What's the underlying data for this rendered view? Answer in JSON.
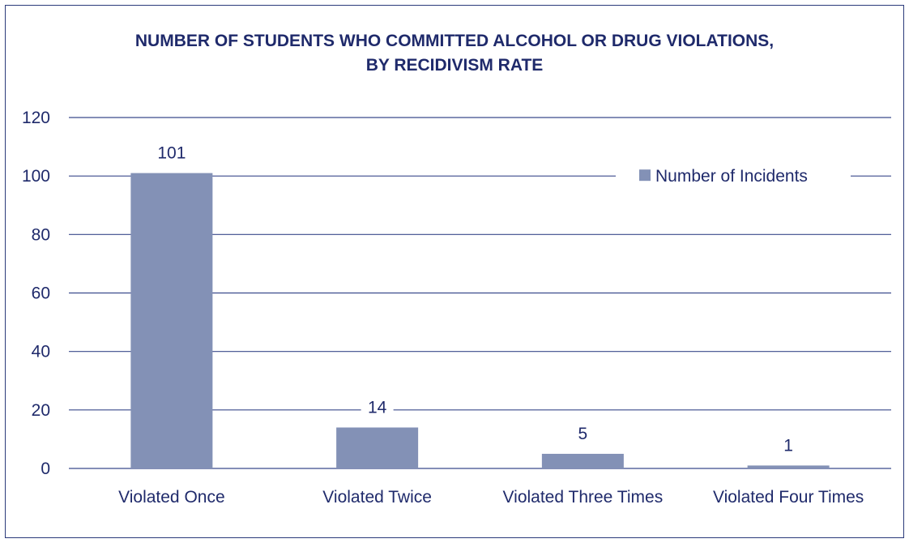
{
  "chart_data": {
    "type": "bar",
    "title_line1": "NUMBER OF STUDENTS WHO COMMITTED ALCOHOL OR DRUG VIOLATIONS,",
    "title_line2": "BY RECIDIVISM RATE",
    "categories": [
      "Violated Once",
      "Violated Twice",
      "Violated Three Times",
      "Violated Four Times"
    ],
    "series": [
      {
        "name": "Number of Incidents",
        "values": [
          101,
          14,
          5,
          1
        ]
      }
    ],
    "data_labels": [
      "101",
      "14",
      "5",
      "1"
    ],
    "ylim": [
      0,
      120
    ],
    "yticks": [
      "0",
      "20",
      "40",
      "60",
      "80",
      "100",
      "120"
    ],
    "grid": true,
    "legend_position": "top-right",
    "colors": {
      "bar": "#8391b6",
      "text": "#1f2a6b",
      "grid": "#3a4a8c",
      "frame": "#2b3a7a"
    }
  }
}
